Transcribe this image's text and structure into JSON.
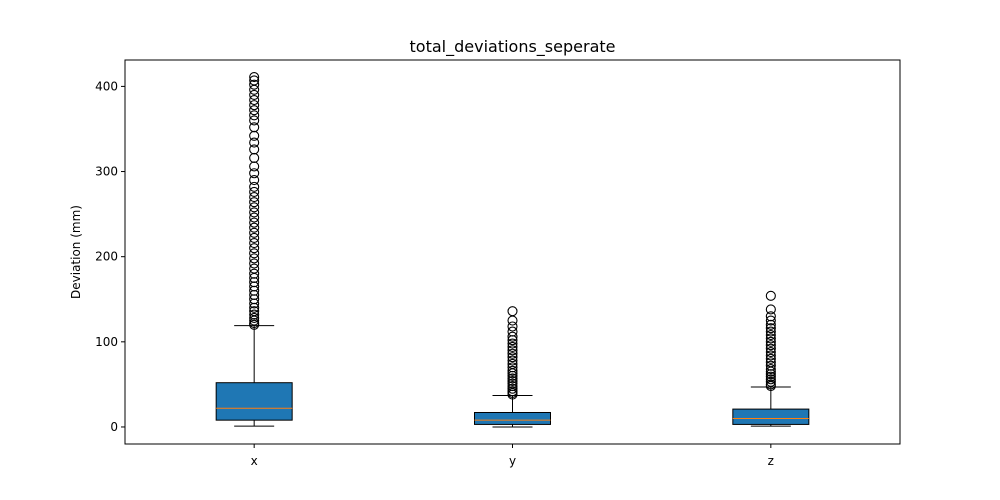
{
  "chart_data": {
    "type": "boxplot",
    "title": "total_deviations_seperate",
    "xlabel": "",
    "ylabel": "Deviation (mm)",
    "ylim": [
      -20,
      431
    ],
    "yticks": [
      0,
      100,
      200,
      300,
      400
    ],
    "grid": false,
    "categories": [
      "x",
      "y",
      "z"
    ],
    "box_color": "#1f77b4",
    "median_color": "#ff7f0e",
    "boxes": [
      {
        "label": "x",
        "whisker_low": 1,
        "q1": 8,
        "median": 22,
        "q3": 52,
        "whisker_high": 119,
        "outliers": [
          120,
          122,
          125,
          128,
          132,
          136,
          140,
          145,
          150,
          155,
          160,
          165,
          170,
          175,
          180,
          186,
          192,
          198,
          204,
          210,
          216,
          222,
          228,
          234,
          240,
          246,
          252,
          258,
          264,
          270,
          276,
          282,
          290,
          298,
          306,
          316,
          326,
          334,
          342,
          352,
          360,
          366,
          372,
          378,
          384,
          390,
          396,
          402,
          407,
          411
        ]
      },
      {
        "label": "y",
        "whisker_low": 0,
        "q1": 3,
        "median": 8,
        "q3": 17,
        "whisker_high": 37,
        "outliers": [
          38,
          40,
          42,
          45,
          48,
          51,
          54,
          57,
          60,
          63,
          66,
          70,
          74,
          78,
          82,
          86,
          90,
          94,
          98,
          102,
          106,
          112,
          118,
          125,
          136
        ]
      },
      {
        "label": "z",
        "whisker_low": 1,
        "q1": 3,
        "median": 10,
        "q3": 21,
        "whisker_high": 47,
        "outliers": [
          48,
          50,
          53,
          56,
          59,
          62,
          65,
          68,
          72,
          76,
          80,
          84,
          88,
          92,
          96,
          100,
          104,
          108,
          112,
          116,
          120,
          125,
          130,
          138,
          154
        ]
      }
    ]
  }
}
